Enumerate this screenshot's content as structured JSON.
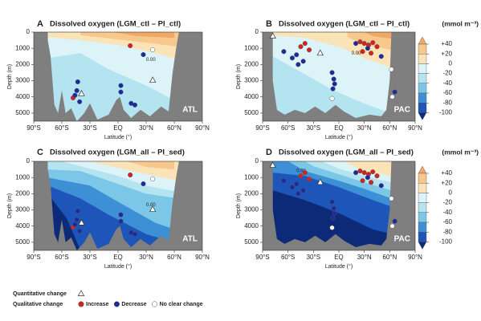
{
  "chart_data": [
    {
      "type": "contour",
      "letter": "A",
      "title": "Dissolved oxygen  (LGM_ctl – PI_ctl)",
      "basin_label": "ATL",
      "contour_label": "0.00",
      "x_label": "Latitude (°)",
      "y_label": "Depth (m)",
      "legend_title": "Qualitative change",
      "xlim": [
        -90,
        90
      ],
      "ylim": [
        0,
        5500
      ],
      "xticks": [
        {
          "value": -90,
          "label": "90°S"
        },
        {
          "value": -60,
          "label": "60°S"
        },
        {
          "value": -30,
          "label": "30°S"
        },
        {
          "value": 0,
          "label": "EQ"
        },
        {
          "value": 30,
          "label": "30°N"
        },
        {
          "value": 60,
          "label": "60°N"
        },
        {
          "value": 90,
          "label": "90°N"
        }
      ],
      "yticks": [
        0,
        1000,
        2000,
        3000,
        4000,
        5000
      ],
      "series": [
        {
          "name": "Increase",
          "color": "#d42222",
          "marker": "circle",
          "x": [
            13,
            -48
          ],
          "y": [
            840,
            4060
          ]
        },
        {
          "name": "Decrease",
          "color": "#1a2aa0",
          "marker": "circle",
          "x": [
            27,
            -43,
            -44,
            -46,
            -41,
            3,
            3,
            14,
            18
          ],
          "y": [
            1390,
            3070,
            3610,
            3900,
            4300,
            3300,
            3700,
            4400,
            4500
          ]
        },
        {
          "name": "No clear change",
          "color": "#ffffff",
          "marker": "circle",
          "x": [
            37
          ],
          "y": [
            1090
          ]
        },
        {
          "name": "Quantitative change",
          "color": "#ffffff",
          "marker": "triangle",
          "x": [
            -39,
            37
          ],
          "y": [
            3800,
            2970
          ]
        }
      ]
    },
    {
      "type": "contour",
      "letter": "B",
      "title": "Dissolved oxygen  (LGM_ctl – PI_ctl)",
      "basin_label": "PAC",
      "contour_label": "0.00",
      "x_label": "Latitude (°)",
      "y_label": "Depth (m)",
      "xlim": [
        -90,
        90
      ],
      "ylim": [
        0,
        5500
      ],
      "xticks": [
        {
          "value": -90,
          "label": "90°S"
        },
        {
          "value": -60,
          "label": "60°S"
        },
        {
          "value": -30,
          "label": "30°S"
        },
        {
          "value": 0,
          "label": "EQ"
        },
        {
          "value": 30,
          "label": "30°N"
        },
        {
          "value": 60,
          "label": "60°N"
        },
        {
          "value": 90,
          "label": "90°N"
        }
      ],
      "yticks": [
        0,
        1000,
        2000,
        3000,
        4000,
        5000
      ],
      "colorbar": {
        "title": "(mmol m⁻³)",
        "ticks": [
          {
            "value": 40,
            "label": "+40"
          },
          {
            "value": 20,
            "label": "+20"
          },
          0,
          -20,
          -40,
          -60,
          -80,
          -100
        ],
        "colors": [
          "#f0a868",
          "#f7c78c",
          "#fbe3b8",
          "#dcf3f8",
          "#b5e4f1",
          "#7cc6e8",
          "#3d8fd6",
          "#1d55b8",
          "#0c2a78"
        ]
      },
      "series": [
        {
          "color": "#d42222",
          "marker": "circle",
          "x": [
            -45,
            -40,
            -35,
            25,
            30,
            35,
            40,
            45,
            28,
            38
          ],
          "y": [
            900,
            700,
            1100,
            600,
            700,
            800,
            650,
            900,
            1200,
            1300
          ]
        },
        {
          "color": "#1a2aa0",
          "marker": "circle",
          "x": [
            -65,
            -55,
            -50,
            -48,
            -42,
            -8,
            -6,
            -5,
            -7,
            20,
            34,
            50,
            66
          ],
          "y": [
            1200,
            1600,
            1400,
            2000,
            1800,
            2500,
            2900,
            3200,
            3500,
            700,
            1000,
            1500,
            3700
          ]
        },
        {
          "color": "#ffffff",
          "marker": "circle",
          "x": [
            62,
            63,
            -8
          ],
          "y": [
            2300,
            4000,
            4100
          ]
        },
        {
          "color": "#ffffff",
          "marker": "triangle",
          "x": [
            -78,
            -22
          ],
          "y": [
            250,
            1300
          ]
        }
      ]
    },
    {
      "type": "contour",
      "letter": "C",
      "title": "Dissolved oxygen  (LGM_all – PI_sed)",
      "basin_label": "ATL",
      "contour_label": "0.00",
      "x_label": "Latitude (°)",
      "y_label": "Depth (m)",
      "xlim": [
        -90,
        90
      ],
      "ylim": [
        0,
        5500
      ],
      "xticks": [
        {
          "value": -90,
          "label": "90°S"
        },
        {
          "value": -60,
          "label": "60°S"
        },
        {
          "value": -30,
          "label": "30°S"
        },
        {
          "value": 0,
          "label": "EQ"
        },
        {
          "value": 30,
          "label": "30°N"
        },
        {
          "value": 60,
          "label": "60°N"
        },
        {
          "value": 90,
          "label": "90°N"
        }
      ],
      "yticks": [
        0,
        1000,
        2000,
        3000,
        4000,
        5000
      ],
      "series": [
        {
          "color": "#d42222",
          "marker": "circle",
          "x": [
            13,
            -48
          ],
          "y": [
            840,
            4060
          ]
        },
        {
          "color": "#1a2aa0",
          "marker": "circle",
          "x": [
            27,
            -43,
            -44,
            -46,
            -41,
            3,
            3,
            14,
            18
          ],
          "y": [
            1390,
            3070,
            3610,
            3900,
            4300,
            3300,
            3700,
            4400,
            4500
          ]
        },
        {
          "color": "#ffffff",
          "marker": "circle",
          "x": [
            37
          ],
          "y": [
            1090
          ]
        },
        {
          "color": "#ffffff",
          "marker": "triangle",
          "x": [
            -39,
            37
          ],
          "y": [
            3800,
            2970
          ]
        }
      ]
    },
    {
      "type": "contour",
      "letter": "D",
      "title": "Dissolved oxygen  (LGM_all – PI_sed)",
      "basin_label": "PAC",
      "contour_label": "0.00",
      "x_label": "Latitude (°)",
      "y_label": "Depth (m)",
      "xlim": [
        -90,
        90
      ],
      "ylim": [
        0,
        5500
      ],
      "xticks": [
        {
          "value": -90,
          "label": "90°S"
        },
        {
          "value": -60,
          "label": "60°S"
        },
        {
          "value": -30,
          "label": "30°S"
        },
        {
          "value": 0,
          "label": "EQ"
        },
        {
          "value": 30,
          "label": "30°N"
        },
        {
          "value": 60,
          "label": "60°N"
        },
        {
          "value": 90,
          "label": "90°N"
        }
      ],
      "yticks": [
        0,
        1000,
        2000,
        3000,
        4000,
        5000
      ],
      "colorbar": {
        "title": "(mmol m⁻³)",
        "ticks": [
          {
            "value": 40,
            "label": "+40"
          },
          {
            "value": 20,
            "label": "+20"
          },
          0,
          -20,
          -40,
          -60,
          -80,
          -100
        ],
        "colors": [
          "#f0a868",
          "#f7c78c",
          "#fbe3b8",
          "#dcf3f8",
          "#b5e4f1",
          "#7cc6e8",
          "#3d8fd6",
          "#1d55b8",
          "#0c2a78"
        ]
      },
      "series": [
        {
          "color": "#d42222",
          "marker": "circle",
          "x": [
            -45,
            -40,
            -35,
            25,
            30,
            35,
            40,
            45,
            28,
            38
          ],
          "y": [
            900,
            700,
            1100,
            600,
            700,
            800,
            650,
            900,
            1200,
            1300
          ]
        },
        {
          "color": "#1a2aa0",
          "marker": "circle",
          "x": [
            -65,
            -55,
            -50,
            -48,
            -42,
            -8,
            -6,
            -5,
            -7,
            20,
            34,
            50,
            66
          ],
          "y": [
            1200,
            1600,
            1400,
            2000,
            1800,
            2500,
            2900,
            3200,
            3500,
            700,
            1000,
            1500,
            3700
          ]
        },
        {
          "color": "#ffffff",
          "marker": "circle",
          "x": [
            62,
            63,
            -8
          ],
          "y": [
            2300,
            4000,
            4100
          ]
        },
        {
          "color": "#ffffff",
          "marker": "triangle",
          "x": [
            -78,
            -22
          ],
          "y": [
            250,
            1300
          ]
        }
      ]
    }
  ]
}
